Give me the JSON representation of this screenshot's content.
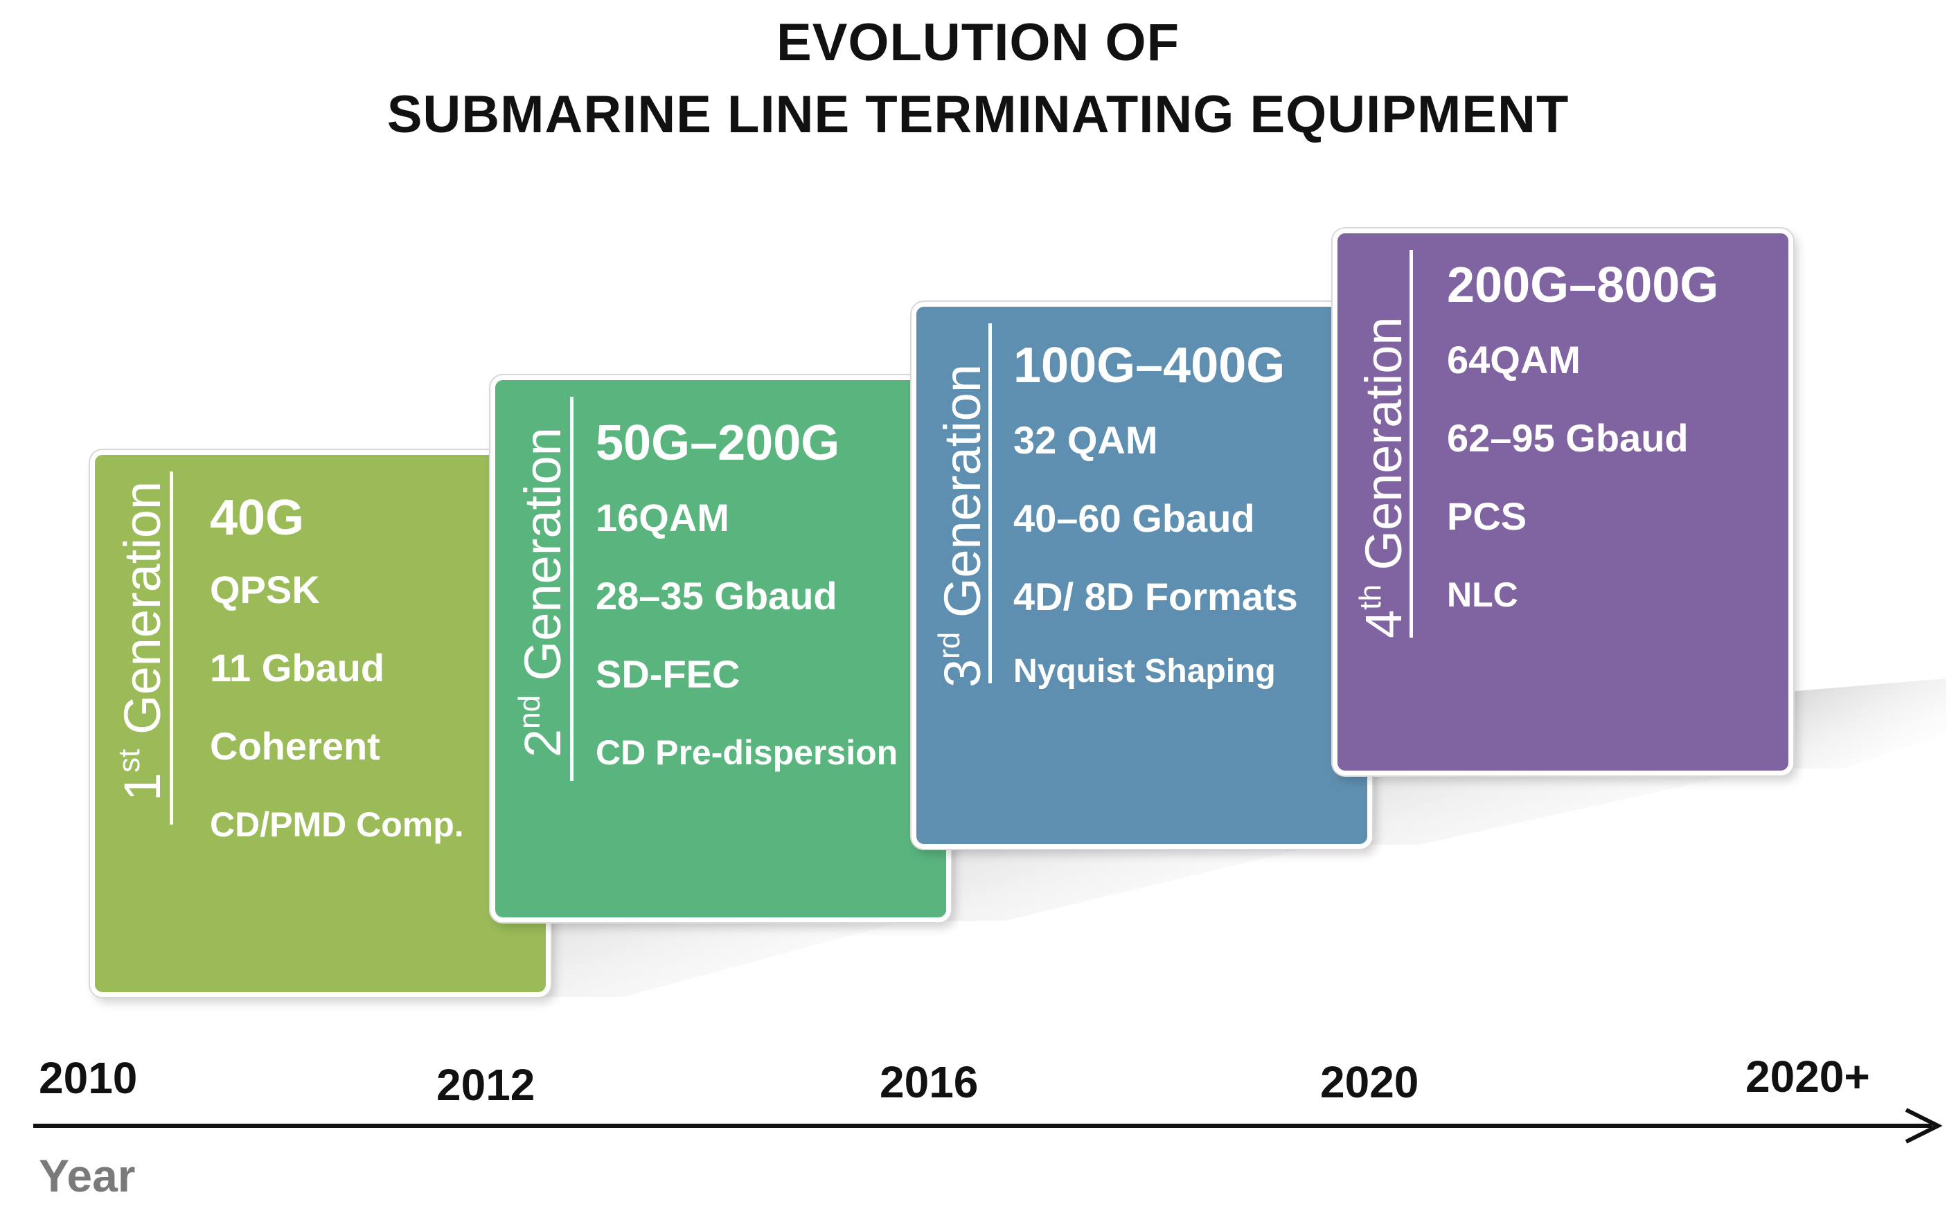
{
  "title": {
    "line1": "EVOLUTION OF",
    "line2": "SUBMARINE LINE TERMINATING EQUIPMENT"
  },
  "generations": [
    {
      "ordinal": "1",
      "suffix": "st",
      "label": "Generation",
      "color": "#9bbb59",
      "lines": [
        "40G",
        "QPSK",
        "11 Gbaud",
        "Coherent",
        "CD/PMD Comp."
      ]
    },
    {
      "ordinal": "2",
      "suffix": "nd",
      "label": "Generation",
      "color": "#5ab47e",
      "lines": [
        "50G–200G",
        "16QAM",
        "28–35 Gbaud",
        "SD-FEC",
        "CD Pre-dispersion"
      ]
    },
    {
      "ordinal": "3",
      "suffix": "rd",
      "label": "Generation",
      "color": "#5f8fb0",
      "lines": [
        "100G–400G",
        "32 QAM",
        "40–60 Gbaud",
        "4D/ 8D Formats",
        "Nyquist Shaping"
      ]
    },
    {
      "ordinal": "4",
      "suffix": "th",
      "label": "Generation",
      "color": "#8064a2",
      "lines": [
        "200G–800G",
        "64QAM",
        "62–95 Gbaud",
        "PCS",
        "NLC"
      ]
    }
  ],
  "axis": {
    "title": "Year",
    "years": [
      "2010",
      "2012",
      "2016",
      "2020",
      "2020+"
    ],
    "line_color": "#111111"
  }
}
